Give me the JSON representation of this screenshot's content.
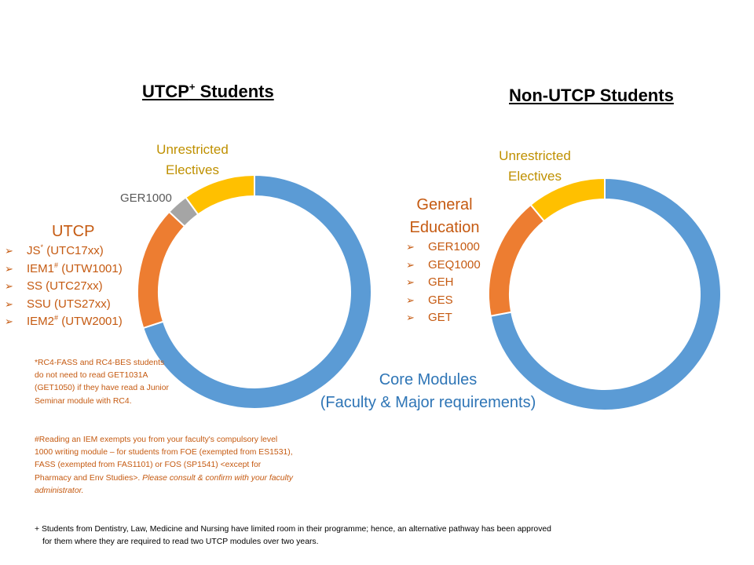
{
  "left_title": {
    "text": "UTCP",
    "sup": "+",
    "rest": " Students"
  },
  "right_title": "Non-UTCP Students",
  "left_labels": {
    "unrestricted_line1": "Unrestricted",
    "unrestricted_line2": "Electives",
    "ger": "GER1000",
    "utcp_heading": "UTCP",
    "utcp_items": [
      {
        "pre": "JS",
        "sup": "*",
        "post": " (UTC17xx)"
      },
      {
        "pre": "IEM1",
        "sup": "#",
        "post": " (UTW1001)"
      },
      {
        "pre": "SS (UTC27xx)",
        "sup": "",
        "post": ""
      },
      {
        "pre": "SSU (UTS27xx)",
        "sup": "",
        "post": ""
      },
      {
        "pre": "IEM2",
        "sup": "#",
        "post": " (UTW2001)"
      }
    ]
  },
  "right_labels": {
    "unrestricted_line1": "Unrestricted",
    "unrestricted_line2": "Electives",
    "ge_line1": "General",
    "ge_line2": "Education",
    "ge_items": [
      "GER1000",
      "GEQ1000",
      "GEH",
      "GES",
      "GET"
    ]
  },
  "core_label": {
    "line1": "Core Modules",
    "line2": "(Faculty & Major requirements)"
  },
  "notes": {
    "star_note": "*RC4-FASS and RC4-BES students do not need to read GET1031A (GET1050) if they have read a Junior Seminar module with RC4.",
    "hash_note_main": "#Reading an IEM exempts you from your faculty's compulsory level 1000 writing module – for students from FOE (exempted from ES1531), FASS (exempted from FAS1101) or FOS (SP1541) <except for Pharmacy and Env Studies>.",
    "hash_note_italic": " Please consult & confirm with your faculty administrator."
  },
  "footnote": {
    "line1": "+ Students from Dentistry, Law, Medicine and Nursing have limited room in their programme; hence, an alternative pathway has been approved",
    "line2": "for them where they are required to read two UTCP modules over two years."
  },
  "colors": {
    "core": "#5B9BD5",
    "utcp": "#ED7D31",
    "ge": "#ED7D31",
    "ger": "#A5A5A5",
    "ue": "#FFC000"
  },
  "chart_data": [
    {
      "type": "pie",
      "subtype": "donut",
      "title": "UTCP+ Students",
      "categories": [
        "Core Modules (Faculty & Major requirements)",
        "UTCP",
        "GER1000",
        "Unrestricted Electives"
      ],
      "values": [
        70,
        17,
        3,
        10
      ],
      "colors": [
        "#5B9BD5",
        "#ED7D31",
        "#A5A5A5",
        "#FFC000"
      ]
    },
    {
      "type": "pie",
      "subtype": "donut",
      "title": "Non-UTCP Students",
      "categories": [
        "Core Modules (Faculty & Major requirements)",
        "General Education",
        "Unrestricted Electives"
      ],
      "values": [
        72,
        17,
        11
      ],
      "colors": [
        "#5B9BD5",
        "#ED7D31",
        "#FFC000"
      ]
    }
  ]
}
